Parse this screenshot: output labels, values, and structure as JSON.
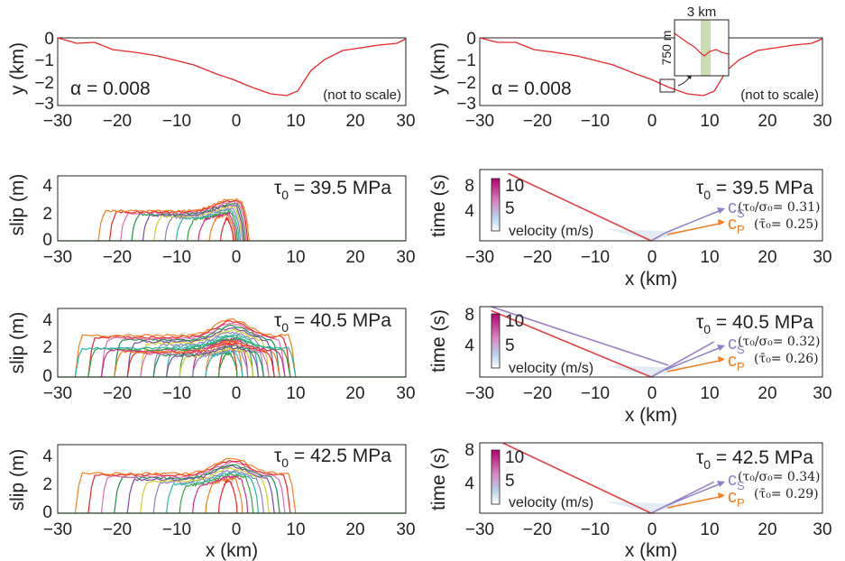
{
  "chart_data": [
    {
      "id": "A",
      "type": "line",
      "ylabel": "y (km)",
      "xlabel": "",
      "xlim": [
        -30,
        30
      ],
      "ylim": [
        -3,
        0
      ],
      "xticks": [
        "−30",
        "−20",
        "−10",
        "0",
        "10",
        "20",
        "30"
      ],
      "yticks": [
        "0",
        "−1",
        "−2",
        "−3"
      ],
      "annotation": "α = 0.008",
      "note": "(not to scale)",
      "line_color": "#e8262a",
      "series": [
        {
          "x": [
            -30,
            -28,
            -26,
            -24,
            -22,
            -20,
            -18,
            -16,
            -14,
            -12,
            -10,
            -8,
            -6,
            -4,
            -2,
            0,
            2,
            4,
            6,
            8,
            10,
            12,
            14,
            16,
            18,
            20,
            22,
            24,
            26,
            28,
            30
          ],
          "y": [
            0,
            -0.1,
            -0.15,
            -0.2,
            -0.25,
            -0.3,
            -0.35,
            -0.5,
            -0.6,
            -0.75,
            -0.9,
            -1.1,
            -1.35,
            -1.55,
            -1.75,
            -1.9,
            -2.05,
            -2.3,
            -2.45,
            -2.55,
            -2.45,
            -1.9,
            -1.2,
            -0.75,
            -0.55,
            -0.45,
            -0.35,
            -0.3,
            -0.2,
            -0.15,
            0
          ]
        }
      ]
    },
    {
      "id": "B",
      "type": "line",
      "ylabel": "y (km)",
      "xlabel": "",
      "xlim": [
        -30,
        30
      ],
      "ylim": [
        -3,
        0
      ],
      "xticks": [
        "−30",
        "−20",
        "−10",
        "0",
        "10",
        "20",
        "30"
      ],
      "yticks": [
        "0",
        "−1",
        "−2",
        "−3"
      ],
      "annotation": "α = 0.008",
      "note": "(not to scale)",
      "inset_width_label": "3 km",
      "inset_height_label": "750 m",
      "inset_band_color": "#c8deb0",
      "line_color": "#e8262a",
      "series": [
        {
          "x": [
            -30,
            -28,
            -26,
            -24,
            -22,
            -20,
            -18,
            -16,
            -14,
            -12,
            -10,
            -8,
            -6,
            -4,
            -2,
            0,
            2,
            4,
            6,
            8,
            10,
            12,
            14,
            16,
            18,
            20,
            22,
            24,
            26,
            28,
            30
          ],
          "y": [
            0,
            -0.1,
            -0.15,
            -0.2,
            -0.25,
            -0.3,
            -0.35,
            -0.5,
            -0.6,
            -0.75,
            -0.9,
            -1.1,
            -1.35,
            -1.55,
            -1.75,
            -1.9,
            -2.05,
            -2.3,
            -2.45,
            -2.55,
            -2.45,
            -1.9,
            -1.2,
            -0.75,
            -0.55,
            -0.45,
            -0.35,
            -0.3,
            -0.2,
            -0.15,
            0
          ]
        }
      ]
    },
    {
      "id": "C",
      "type": "line",
      "ylabel": "slip (m)",
      "xlabel": "",
      "xlim": [
        -30,
        30
      ],
      "ylim": [
        0,
        5
      ],
      "xticks": [
        "−30",
        "−20",
        "−10",
        "0",
        "10",
        "20",
        "30"
      ],
      "yticks": [
        "0",
        "2",
        "4"
      ],
      "tau_label": "τ",
      "tau_sub": "0",
      "tau_value": " = 39.5 MPa",
      "ruptures": [
        {
          "left": -23,
          "right": 3,
          "peak": 3.2
        }
      ]
    },
    {
      "id": "D",
      "type": "line",
      "ylabel": "time (s)",
      "xlabel": "x (km)",
      "xlim": [
        -30,
        30
      ],
      "ylim": [
        0,
        9
      ],
      "xticks": [
        "−30",
        "−20",
        "−10",
        "0",
        "10",
        "20",
        "30"
      ],
      "yticks": [
        "4",
        "8"
      ],
      "tau_label": "τ",
      "tau_sub": "0",
      "tau_value": " = 39.5 MPa",
      "ratio_text": "(τ₀/σ₀= 0.31)",
      "tbar_text": "(τ̄₀= 0.25)",
      "colorbar_ticks": [
        "10",
        "5"
      ],
      "colorbar_label": "velocity (m/s)",
      "cs_label": "c",
      "cs_sub": "S",
      "cp_label": "c",
      "cp_sub": "P",
      "fronts": [
        {
          "x": [
            0,
            -25
          ],
          "y": [
            0,
            8.5
          ]
        },
        {
          "x": [
            0,
            2.5
          ],
          "y": [
            0,
            1
          ]
        }
      ]
    },
    {
      "id": "E",
      "type": "line",
      "ylabel": "slip (m)",
      "xlabel": "",
      "xlim": [
        -30,
        30
      ],
      "ylim": [
        0,
        5
      ],
      "xticks": [
        "−30",
        "−20",
        "−10",
        "0",
        "10",
        "20",
        "30"
      ],
      "yticks": [
        "0",
        "2",
        "4"
      ],
      "tau_label": "τ",
      "tau_sub": "0",
      "tau_value": " = 40.5 MPa",
      "ruptures": [
        {
          "left": -27,
          "right": 11,
          "peak": 4.2
        },
        {
          "left": -27,
          "right": 11,
          "peak": 2.9
        }
      ]
    },
    {
      "id": "F",
      "type": "line",
      "ylabel": "time (s)",
      "xlabel": "x (km)",
      "xlim": [
        -30,
        30
      ],
      "ylim": [
        0,
        9
      ],
      "xticks": [
        "−30",
        "−20",
        "−10",
        "0",
        "10",
        "20",
        "30"
      ],
      "yticks": [
        "4",
        "8"
      ],
      "tau_label": "τ",
      "tau_sub": "0",
      "tau_value": " = 40.5 MPa",
      "ratio_text": "(τ₀/σ₀= 0.32)",
      "tbar_text": "(τ̄₀= 0.26)",
      "colorbar_ticks": [
        "10",
        "5"
      ],
      "colorbar_label": "velocity (m/s)",
      "cs_label": "c",
      "cs_sub": "S",
      "cp_label": "c",
      "cp_sub": "P",
      "fronts": [
        {
          "x": [
            0,
            -28
          ],
          "y": [
            0,
            8.5
          ]
        },
        {
          "x": [
            3,
            -28
          ],
          "y": [
            1.5,
            9
          ]
        },
        {
          "x": [
            0,
            11
          ],
          "y": [
            0,
            4.5
          ]
        }
      ]
    },
    {
      "id": "G",
      "type": "line",
      "ylabel": "slip (m)",
      "xlabel": "x (km)",
      "xlim": [
        -30,
        30
      ],
      "ylim": [
        0,
        5
      ],
      "xticks": [
        "−30",
        "−20",
        "−10",
        "0",
        "10",
        "20",
        "30"
      ],
      "yticks": [
        "0",
        "2",
        "4"
      ],
      "tau_label": "τ",
      "tau_sub": "0",
      "tau_value": " = 42.5 MPa",
      "ruptures": [
        {
          "left": -27,
          "right": 11,
          "peak": 4.0
        }
      ]
    },
    {
      "id": "H",
      "type": "line",
      "ylabel": "time (s)",
      "xlabel": "x (km)",
      "xlim": [
        -30,
        30
      ],
      "ylim": [
        0,
        9
      ],
      "xticks": [
        "−30",
        "−20",
        "−10",
        "0",
        "10",
        "20",
        "30"
      ],
      "yticks": [
        "4",
        "8"
      ],
      "tau_label": "τ",
      "tau_sub": "0",
      "tau_value": " = 42.5 MPa",
      "ratio_text": "(τ₀/σ₀= 0.34)",
      "tbar_text": "(τ̄₀= 0.29)",
      "colorbar_ticks": [
        "10",
        "5"
      ],
      "colorbar_label": "velocity (m/s)",
      "cs_label": "c",
      "cs_sub": "S",
      "cp_label": "c",
      "cp_sub": "P",
      "fronts": [
        {
          "x": [
            0,
            -26
          ],
          "y": [
            0,
            9
          ]
        },
        {
          "x": [
            0,
            11
          ],
          "y": [
            0,
            4
          ]
        }
      ]
    }
  ],
  "colors": {
    "axis": "#231f20",
    "cs_arrow": "#8b80c8",
    "cp_arrow": "#f07f22",
    "front_line": "#9a7fc4",
    "front_red": "#e04040",
    "colorbar_top": "#b3006e",
    "colorbar_bottom": "#ffffff",
    "slip_contours": [
      "#e8262a",
      "#f07f22",
      "#cc2f8a",
      "#3aa03c",
      "#2bb5a8",
      "#8b80c8",
      "#cfd02a",
      "#7a4aa0",
      "#1b8f4e",
      "#e06cb0"
    ]
  }
}
